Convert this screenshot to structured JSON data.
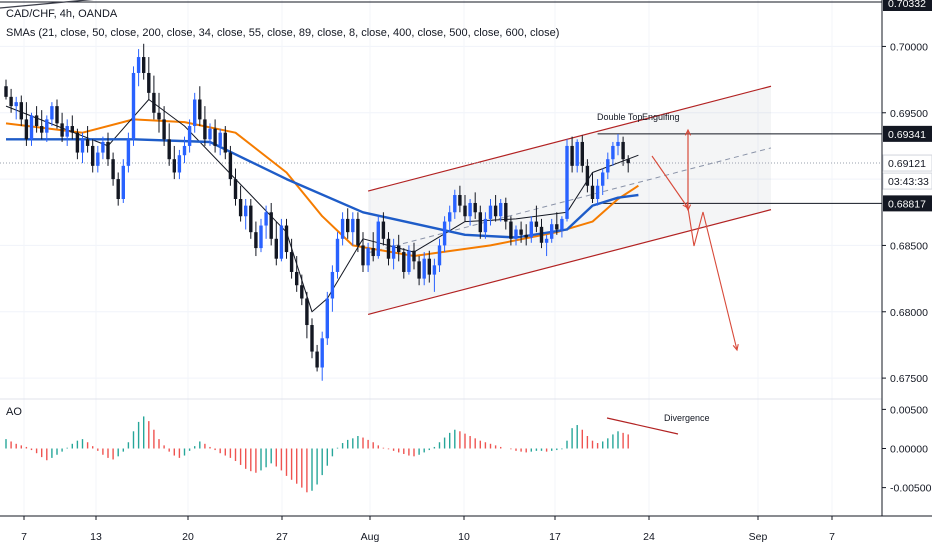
{
  "header": {
    "symbol_line": "CAD/CHF, 4h, OANDA",
    "sma_line": "SMAs (21, close, 50, close, 200, close, 34, close, 55, close, 89, close, 8, close, 400, close, 500, close, 600, close)",
    "ao_label": "AO"
  },
  "price_scale": {
    "ticks": [
      "0.70000",
      "0.69500",
      "0.69000",
      "0.68500",
      "0.68000",
      "0.67500"
    ],
    "tick_values": [
      0.7,
      0.695,
      0.69,
      0.685,
      0.68,
      0.675
    ],
    "badges": [
      {
        "text": "0.70332",
        "value": 0.70332,
        "style": "dark"
      },
      {
        "text": "0.69341",
        "value": 0.69341,
        "style": "dark"
      },
      {
        "text": "0.69121",
        "value": 0.69121,
        "style": "light"
      },
      {
        "text": "03:43:33",
        "value": 0.68985,
        "style": "light"
      },
      {
        "text": "0.68817",
        "value": 0.68817,
        "style": "dark"
      }
    ]
  },
  "ao_scale": {
    "ticks": [
      "0.00500",
      "0.00000",
      "-0.00500"
    ],
    "tick_values": [
      0.005,
      0.0,
      -0.005
    ]
  },
  "time_axis": {
    "labels": [
      "7",
      "13",
      "20",
      "27",
      "Aug",
      "10",
      "17",
      "24",
      "Sep",
      "7"
    ]
  },
  "annotations": {
    "double_top": "Double Top",
    "engulfing": "Engulfing",
    "divergence": "Divergence"
  },
  "colors": {
    "up": "#2962ff",
    "down": "#131722",
    "channel": "#b22222",
    "orange_sma": "#f57c00",
    "blue_sma": "#1e5cc8",
    "black_sma": "#131722",
    "ao_up": "#26a69a",
    "ao_down": "#ef5350",
    "arrow": "#d84a3a"
  },
  "chart_data": {
    "type": "candlestick",
    "title": "CAD/CHF, 4h, OANDA",
    "ylim": [
      0.6735,
      0.7035
    ],
    "x_range": [
      0,
      165
    ],
    "candles": [
      [
        0.697,
        0.6975,
        0.696,
        0.6962
      ],
      [
        0.6962,
        0.6968,
        0.695,
        0.6955
      ],
      [
        0.6955,
        0.6962,
        0.6945,
        0.6958
      ],
      [
        0.6958,
        0.6963,
        0.694,
        0.6945
      ],
      [
        0.6945,
        0.6958,
        0.6925,
        0.693
      ],
      [
        0.693,
        0.695,
        0.6925,
        0.6948
      ],
      [
        0.6948,
        0.6955,
        0.6935,
        0.694
      ],
      [
        0.694,
        0.6952,
        0.693,
        0.6935
      ],
      [
        0.6935,
        0.6948,
        0.6928,
        0.6945
      ],
      [
        0.6945,
        0.6958,
        0.694,
        0.6955
      ],
      [
        0.6955,
        0.696,
        0.6938,
        0.6942
      ],
      [
        0.6942,
        0.695,
        0.6928,
        0.6932
      ],
      [
        0.6932,
        0.6945,
        0.6925,
        0.694
      ],
      [
        0.694,
        0.6948,
        0.693,
        0.6935
      ],
      [
        0.6935,
        0.6938,
        0.6915,
        0.692
      ],
      [
        0.692,
        0.6935,
        0.6912,
        0.693
      ],
      [
        0.693,
        0.694,
        0.692,
        0.6925
      ],
      [
        0.6925,
        0.693,
        0.6905,
        0.691
      ],
      [
        0.691,
        0.6925,
        0.6905,
        0.692
      ],
      [
        0.692,
        0.6932,
        0.6915,
        0.6928
      ],
      [
        0.6928,
        0.6935,
        0.691,
        0.6915
      ],
      [
        0.6915,
        0.692,
        0.6895,
        0.69
      ],
      [
        0.69,
        0.6905,
        0.688,
        0.6885
      ],
      [
        0.6885,
        0.6915,
        0.6882,
        0.691
      ],
      [
        0.691,
        0.6935,
        0.6905,
        0.693
      ],
      [
        0.693,
        0.6985,
        0.6925,
        0.698
      ],
      [
        0.698,
        0.6998,
        0.697,
        0.6992
      ],
      [
        0.6992,
        0.7002,
        0.6975,
        0.698
      ],
      [
        0.698,
        0.6992,
        0.696,
        0.6965
      ],
      [
        0.6965,
        0.6978,
        0.6945,
        0.695
      ],
      [
        0.695,
        0.6965,
        0.6935,
        0.6945
      ],
      [
        0.6945,
        0.6955,
        0.6925,
        0.693
      ],
      [
        0.693,
        0.6942,
        0.691,
        0.6915
      ],
      [
        0.6915,
        0.6925,
        0.69,
        0.6905
      ],
      [
        0.6905,
        0.6922,
        0.69,
        0.6918
      ],
      [
        0.6918,
        0.6932,
        0.6912,
        0.6925
      ],
      [
        0.6925,
        0.6945,
        0.692,
        0.694
      ],
      [
        0.694,
        0.6965,
        0.6935,
        0.696
      ],
      [
        0.696,
        0.697,
        0.694,
        0.6945
      ],
      [
        0.6945,
        0.6955,
        0.6925,
        0.693
      ],
      [
        0.693,
        0.6942,
        0.6925,
        0.6938
      ],
      [
        0.6938,
        0.6945,
        0.692,
        0.6925
      ],
      [
        0.6925,
        0.6938,
        0.6918,
        0.6935
      ],
      [
        0.6935,
        0.694,
        0.6915,
        0.692
      ],
      [
        0.692,
        0.6925,
        0.6895,
        0.69
      ],
      [
        0.69,
        0.6908,
        0.688,
        0.6885
      ],
      [
        0.6885,
        0.6895,
        0.6868,
        0.6872
      ],
      [
        0.6872,
        0.6885,
        0.6862,
        0.688
      ],
      [
        0.688,
        0.6885,
        0.6855,
        0.686
      ],
      [
        0.686,
        0.6868,
        0.6842,
        0.6848
      ],
      [
        0.6848,
        0.687,
        0.6845,
        0.6865
      ],
      [
        0.6865,
        0.688,
        0.6855,
        0.6875
      ],
      [
        0.6875,
        0.6882,
        0.685,
        0.6855
      ],
      [
        0.6855,
        0.6868,
        0.6835,
        0.684
      ],
      [
        0.684,
        0.687,
        0.6838,
        0.6865
      ],
      [
        0.6865,
        0.687,
        0.684,
        0.6845
      ],
      [
        0.6845,
        0.6855,
        0.6825,
        0.683
      ],
      [
        0.683,
        0.6842,
        0.6815,
        0.682
      ],
      [
        0.682,
        0.6828,
        0.6805,
        0.681
      ],
      [
        0.681,
        0.6815,
        0.678,
        0.679
      ],
      [
        0.679,
        0.6795,
        0.6765,
        0.677
      ],
      [
        0.677,
        0.6775,
        0.6755,
        0.6758
      ],
      [
        0.6758,
        0.6785,
        0.6748,
        0.678
      ],
      [
        0.678,
        0.6815,
        0.6775,
        0.681
      ],
      [
        0.681,
        0.6835,
        0.68,
        0.683
      ],
      [
        0.683,
        0.686,
        0.6825,
        0.6855
      ],
      [
        0.6855,
        0.6875,
        0.685,
        0.687
      ],
      [
        0.687,
        0.6878,
        0.6855,
        0.686
      ],
      [
        0.686,
        0.6875,
        0.685,
        0.687
      ],
      [
        0.687,
        0.6875,
        0.6845,
        0.685
      ],
      [
        0.685,
        0.686,
        0.683,
        0.6835
      ],
      [
        0.6835,
        0.6852,
        0.683,
        0.6848
      ],
      [
        0.6848,
        0.686,
        0.6838,
        0.6842
      ],
      [
        0.6842,
        0.6872,
        0.684,
        0.6868
      ],
      [
        0.6868,
        0.6875,
        0.685,
        0.6855
      ],
      [
        0.6855,
        0.686,
        0.6835,
        0.684
      ],
      [
        0.684,
        0.6855,
        0.6832,
        0.685
      ],
      [
        0.685,
        0.6858,
        0.6838,
        0.6845
      ],
      [
        0.6845,
        0.6848,
        0.6825,
        0.683
      ],
      [
        0.683,
        0.685,
        0.6828,
        0.6846
      ],
      [
        0.6846,
        0.6852,
        0.6832,
        0.6838
      ],
      [
        0.6838,
        0.6842,
        0.682,
        0.6825
      ],
      [
        0.6825,
        0.6845,
        0.682,
        0.684
      ],
      [
        0.684,
        0.6846,
        0.6822,
        0.6828
      ],
      [
        0.6828,
        0.684,
        0.6815,
        0.6835
      ],
      [
        0.6835,
        0.6855,
        0.683,
        0.685
      ],
      [
        0.685,
        0.6872,
        0.6845,
        0.6868
      ],
      [
        0.6868,
        0.688,
        0.686,
        0.6875
      ],
      [
        0.6875,
        0.6892,
        0.687,
        0.6888
      ],
      [
        0.6888,
        0.6895,
        0.6875,
        0.688
      ],
      [
        0.688,
        0.6888,
        0.6868,
        0.6872
      ],
      [
        0.6872,
        0.6885,
        0.6865,
        0.6882
      ],
      [
        0.6882,
        0.689,
        0.687,
        0.6875
      ],
      [
        0.6875,
        0.688,
        0.6855,
        0.686
      ],
      [
        0.686,
        0.6875,
        0.6855,
        0.687
      ],
      [
        0.687,
        0.6885,
        0.6865,
        0.688
      ],
      [
        0.688,
        0.6888,
        0.6868,
        0.6872
      ],
      [
        0.6872,
        0.6885,
        0.6868,
        0.6882
      ],
      [
        0.6882,
        0.6886,
        0.6862,
        0.6868
      ],
      [
        0.6868,
        0.6872,
        0.685,
        0.6855
      ],
      [
        0.6855,
        0.6865,
        0.685,
        0.6862
      ],
      [
        0.6862,
        0.6868,
        0.6852,
        0.6858
      ],
      [
        0.6858,
        0.6866,
        0.685,
        0.6856
      ],
      [
        0.6856,
        0.6872,
        0.6852,
        0.6868
      ],
      [
        0.6868,
        0.688,
        0.686,
        0.6864
      ],
      [
        0.6864,
        0.687,
        0.6848,
        0.6852
      ],
      [
        0.6852,
        0.6858,
        0.6842,
        0.6855
      ],
      [
        0.6855,
        0.687,
        0.6852,
        0.6866
      ],
      [
        0.6866,
        0.6875,
        0.6858,
        0.6862
      ],
      [
        0.6862,
        0.6872,
        0.6856,
        0.687
      ],
      [
        0.687,
        0.693,
        0.6868,
        0.6925
      ],
      [
        0.6925,
        0.6932,
        0.6905,
        0.691
      ],
      [
        0.691,
        0.693,
        0.6905,
        0.6928
      ],
      [
        0.6928,
        0.6933,
        0.6905,
        0.691
      ],
      [
        0.691,
        0.6915,
        0.689,
        0.6895
      ],
      [
        0.6895,
        0.6905,
        0.6882,
        0.6885
      ],
      [
        0.6885,
        0.69,
        0.688,
        0.6895
      ],
      [
        0.6895,
        0.6908,
        0.6888,
        0.6905
      ],
      [
        0.6905,
        0.692,
        0.69,
        0.6915
      ],
      [
        0.6915,
        0.6928,
        0.691,
        0.6925
      ],
      [
        0.6925,
        0.6934,
        0.6918,
        0.6928
      ],
      [
        0.6928,
        0.6932,
        0.691,
        0.6915
      ],
      [
        0.6915,
        0.6918,
        0.6905,
        0.6912
      ]
    ],
    "sma_orange": [
      [
        0,
        0.6942
      ],
      [
        15,
        0.6935
      ],
      [
        25,
        0.6945
      ],
      [
        35,
        0.6943
      ],
      [
        45,
        0.6935
      ],
      [
        55,
        0.6905
      ],
      [
        62,
        0.6872
      ],
      [
        68,
        0.685
      ],
      [
        80,
        0.6842
      ],
      [
        95,
        0.685
      ],
      [
        108,
        0.686
      ],
      [
        115,
        0.6868
      ],
      [
        120,
        0.6885
      ],
      [
        124,
        0.6895
      ]
    ],
    "sma_blue": [
      [
        0,
        0.693
      ],
      [
        25,
        0.693
      ],
      [
        40,
        0.6928
      ],
      [
        55,
        0.69
      ],
      [
        70,
        0.6875
      ],
      [
        90,
        0.6858
      ],
      [
        100,
        0.6856
      ],
      [
        110,
        0.6862
      ],
      [
        115,
        0.688
      ],
      [
        120,
        0.6886
      ],
      [
        124,
        0.6888
      ]
    ],
    "sma_black": [
      [
        0,
        0.6955
      ],
      [
        10,
        0.694
      ],
      [
        20,
        0.6925
      ],
      [
        28,
        0.696
      ],
      [
        35,
        0.694
      ],
      [
        45,
        0.69
      ],
      [
        55,
        0.686
      ],
      [
        60,
        0.68
      ],
      [
        63,
        0.681
      ],
      [
        70,
        0.6855
      ],
      [
        80,
        0.6845
      ],
      [
        90,
        0.6868
      ],
      [
        100,
        0.687
      ],
      [
        110,
        0.6875
      ],
      [
        115,
        0.6905
      ],
      [
        124,
        0.6918
      ]
    ],
    "channel_upper": [
      [
        71,
        0.6891
      ],
      [
        150,
        0.697
      ]
    ],
    "channel_lower": [
      [
        71,
        0.6798
      ],
      [
        150,
        0.6877
      ]
    ],
    "double_top_level": 0.69341,
    "support_level": 0.68817,
    "current_price": 0.69121,
    "ao": [
      0.0012,
      0.0009,
      0.0006,
      0.0004,
      0.0002,
      -0.0002,
      -0.0006,
      -0.0011,
      -0.0015,
      -0.0012,
      -0.0008,
      -0.0004,
      0.0001,
      0.0006,
      0.001,
      0.0012,
      0.0008,
      0.0003,
      -0.0003,
      -0.0008,
      -0.0012,
      -0.0014,
      -0.001,
      -0.0004,
      0.0008,
      0.0022,
      0.0034,
      0.0041,
      0.0035,
      0.0024,
      0.0012,
      0.0004,
      -0.0004,
      -0.0009,
      -0.0012,
      -0.0009,
      -0.0003,
      0.0003,
      0.0009,
      0.0006,
      0.0002,
      -0.0002,
      -0.0006,
      -0.0009,
      -0.0012,
      -0.0016,
      -0.0021,
      -0.0026,
      -0.0029,
      -0.0031,
      -0.0028,
      -0.0024,
      -0.0019,
      -0.0023,
      -0.0028,
      -0.0035,
      -0.004,
      -0.0045,
      -0.005,
      -0.0056,
      -0.0054,
      -0.0046,
      -0.0034,
      -0.0022,
      -0.001,
      0.0001,
      0.0007,
      0.0011,
      0.0013,
      0.0016,
      0.0014,
      0.0011,
      0.0008,
      0.0004,
      0.0001,
      -0.0001,
      -0.0003,
      -0.0005,
      -0.0007,
      -0.0009,
      -0.001,
      -0.0008,
      -0.0005,
      -0.0002,
      0.0002,
      0.0008,
      0.0014,
      0.002,
      0.0024,
      0.0022,
      0.0019,
      0.0016,
      0.0013,
      0.001,
      0.0008,
      0.0006,
      0.0004,
      0.0002,
      0.0,
      -0.0001,
      -0.0003,
      -0.0004,
      -0.0005,
      -0.0004,
      -0.0003,
      -0.0003,
      -0.0004,
      -0.0003,
      -0.0002,
      -0.0001,
      0.001,
      0.0026,
      0.003,
      0.0024,
      0.0016,
      0.001,
      0.0007,
      0.0009,
      0.0013,
      0.0018,
      0.0022,
      0.002,
      0.0018
    ],
    "ao_ylim": [
      -0.0085,
      0.0062
    ]
  }
}
